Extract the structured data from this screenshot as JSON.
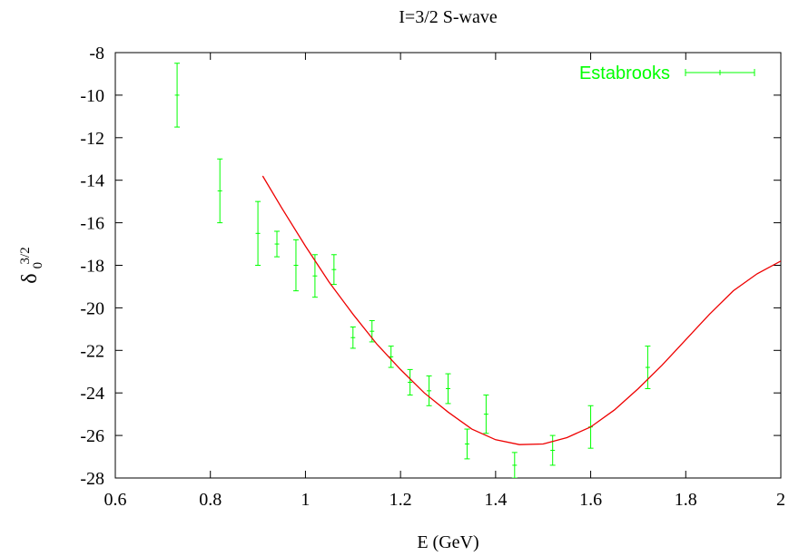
{
  "chart_data": {
    "type": "scatter",
    "title": "I=3/2 S-wave",
    "xlabel": "E (GeV)",
    "ylabel": {
      "base": "δ",
      "sub": "0",
      "sup": "3/2"
    },
    "xlim": [
      0.6,
      2.0
    ],
    "ylim": [
      -28,
      -8
    ],
    "x_ticks": [
      0.6,
      0.8,
      1,
      1.2,
      1.4,
      1.6,
      1.8,
      2
    ],
    "x_tick_labels": [
      "0.6",
      "0.8",
      "1",
      "1.2",
      "1.4",
      "1.6",
      "1.8",
      "2"
    ],
    "y_ticks": [
      -28,
      -26,
      -24,
      -22,
      -20,
      -18,
      -16,
      -14,
      -12,
      -10,
      -8
    ],
    "y_tick_labels": [
      "-28",
      "-26",
      "-24",
      "-22",
      "-20",
      "-18",
      "-16",
      "-14",
      "-12",
      "-10",
      "-8"
    ],
    "grid": false,
    "legend_position": "top-right",
    "series": [
      {
        "name": "Estabrooks",
        "kind": "errorbar",
        "color": "#00ff00",
        "points": [
          {
            "x": 0.73,
            "y": -10.0,
            "err": 1.5
          },
          {
            "x": 0.82,
            "y": -14.5,
            "err": 1.5
          },
          {
            "x": 0.9,
            "y": -16.5,
            "err": 1.5
          },
          {
            "x": 0.94,
            "y": -17.0,
            "err": 0.6
          },
          {
            "x": 0.98,
            "y": -18.0,
            "err": 1.2
          },
          {
            "x": 1.02,
            "y": -18.5,
            "err": 1.0
          },
          {
            "x": 1.06,
            "y": -18.2,
            "err": 0.7
          },
          {
            "x": 1.1,
            "y": -21.4,
            "err": 0.5
          },
          {
            "x": 1.14,
            "y": -21.1,
            "err": 0.5
          },
          {
            "x": 1.18,
            "y": -22.3,
            "err": 0.5
          },
          {
            "x": 1.22,
            "y": -23.5,
            "err": 0.6
          },
          {
            "x": 1.26,
            "y": -23.9,
            "err": 0.7
          },
          {
            "x": 1.3,
            "y": -23.8,
            "err": 0.7
          },
          {
            "x": 1.34,
            "y": -26.4,
            "err": 0.7
          },
          {
            "x": 1.38,
            "y": -25.0,
            "err": 0.9
          },
          {
            "x": 1.44,
            "y": -27.4,
            "err": 0.6
          },
          {
            "x": 1.52,
            "y": -26.7,
            "err": 0.7
          },
          {
            "x": 1.6,
            "y": -25.6,
            "err": 1.0
          },
          {
            "x": 1.72,
            "y": -22.8,
            "err": 1.0
          }
        ]
      },
      {
        "name": "",
        "kind": "line",
        "color": "#ee0000",
        "points": [
          {
            "x": 0.91,
            "y": -13.8
          },
          {
            "x": 0.95,
            "y": -15.3
          },
          {
            "x": 1.0,
            "y": -17.1
          },
          {
            "x": 1.05,
            "y": -18.8
          },
          {
            "x": 1.1,
            "y": -20.3
          },
          {
            "x": 1.15,
            "y": -21.7
          },
          {
            "x": 1.2,
            "y": -22.9
          },
          {
            "x": 1.25,
            "y": -24.0
          },
          {
            "x": 1.3,
            "y": -24.9
          },
          {
            "x": 1.35,
            "y": -25.7
          },
          {
            "x": 1.4,
            "y": -26.2
          },
          {
            "x": 1.45,
            "y": -26.43
          },
          {
            "x": 1.5,
            "y": -26.4
          },
          {
            "x": 1.55,
            "y": -26.1
          },
          {
            "x": 1.6,
            "y": -25.6
          },
          {
            "x": 1.65,
            "y": -24.8
          },
          {
            "x": 1.7,
            "y": -23.8
          },
          {
            "x": 1.75,
            "y": -22.7
          },
          {
            "x": 1.8,
            "y": -21.5
          },
          {
            "x": 1.85,
            "y": -20.3
          },
          {
            "x": 1.9,
            "y": -19.2
          },
          {
            "x": 1.95,
            "y": -18.4
          },
          {
            "x": 2.0,
            "y": -17.8
          }
        ]
      }
    ]
  }
}
